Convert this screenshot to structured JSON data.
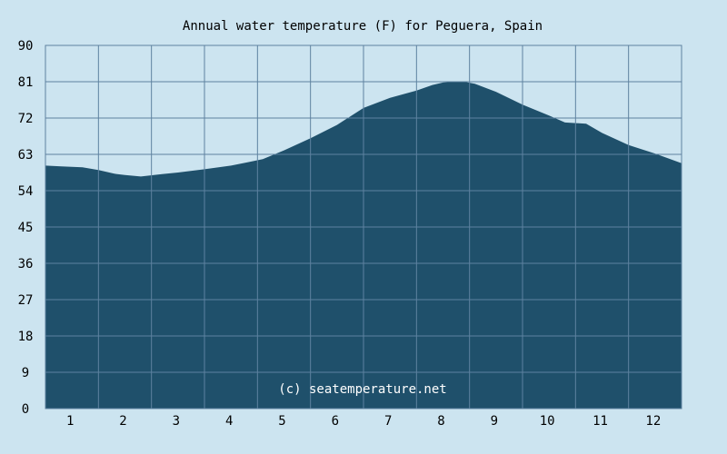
{
  "chart_data": {
    "type": "area",
    "title": "Annual water temperature (F) for Peguera, Spain",
    "watermark": "(c) seatemperature.net",
    "xlabel": "",
    "ylabel": "",
    "x_ticks": [
      "1",
      "2",
      "3",
      "4",
      "5",
      "6",
      "7",
      "8",
      "9",
      "10",
      "11",
      "12"
    ],
    "y_ticks": [
      "0",
      "9",
      "18",
      "27",
      "36",
      "45",
      "54",
      "63",
      "72",
      "81",
      "90"
    ],
    "ylim": [
      0,
      90
    ],
    "xlim": [
      0.5,
      12.5
    ],
    "grid": true,
    "series": [
      {
        "x": [
          0.5,
          0.8,
          1.2,
          1.5,
          1.8,
          2.0,
          2.3,
          2.7,
          3.0,
          3.5,
          4.0,
          4.3,
          4.6,
          5.0,
          5.5,
          6.0,
          6.5,
          7.0,
          7.5,
          7.8,
          8.0,
          8.2,
          8.4,
          8.6,
          9.0,
          9.5,
          10.0,
          10.3,
          10.7,
          11.0,
          11.5,
          12.0,
          12.5
        ],
        "values": [
          60.2,
          60.0,
          59.8,
          59.1,
          58.2,
          57.9,
          57.5,
          58.1,
          58.5,
          59.3,
          60.2,
          61.0,
          61.8,
          64.0,
          67.0,
          70.3,
          74.5,
          77.0,
          78.8,
          80.2,
          80.8,
          81.0,
          81.0,
          80.5,
          78.5,
          75.3,
          72.6,
          70.9,
          70.6,
          68.3,
          65.3,
          63.2,
          60.8
        ]
      }
    ],
    "colors": {
      "background": "#cce4f0",
      "area": "#1f506b",
      "grid": "#5e82a0",
      "text": "#000000",
      "watermark": "#ffffff"
    }
  }
}
